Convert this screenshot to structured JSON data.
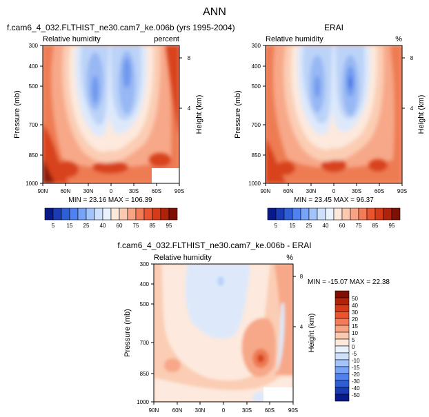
{
  "figure_title": "ANN",
  "chart_data": [
    {
      "type": "heatmap",
      "id": "model",
      "title": "f.cam6_4_032.FLTHIST_ne30.cam7_ke.006b (yrs 1995-2004)",
      "left_label": "Relative humidity",
      "right_label": "percent",
      "xlabel": "",
      "ylabel": "Pressure (mb)",
      "y2label": "Height (km)",
      "x_ticks": [
        "90N",
        "60N",
        "30N",
        "0",
        "30S",
        "60S",
        "90S"
      ],
      "x_values": [
        90,
        60,
        30,
        0,
        -30,
        -60,
        -90
      ],
      "y_ticks": [
        "300",
        "400",
        "500",
        "700",
        "850",
        "1000"
      ],
      "y_values": [
        300,
        400,
        500,
        700,
        850,
        1000
      ],
      "y2_ticks": [
        "8",
        "4"
      ],
      "stats_text": "MIN = 23.16   MAX = 106.39",
      "min": 23.16,
      "max": 106.39
    },
    {
      "type": "heatmap",
      "id": "obs",
      "title": "ERAI",
      "left_label": "Relative humidity",
      "right_label": "%",
      "xlabel": "",
      "ylabel": "Pressure (mb)",
      "y2label": "Height (km)",
      "x_ticks": [
        "90N",
        "60N",
        "30N",
        "0",
        "30S",
        "60S",
        "90S"
      ],
      "x_values": [
        90,
        60,
        30,
        0,
        -30,
        -60,
        -90
      ],
      "y_ticks": [
        "300",
        "400",
        "500",
        "700",
        "850",
        "1000"
      ],
      "y_values": [
        300,
        400,
        500,
        700,
        850,
        1000
      ],
      "y2_ticks": [
        "8",
        "4"
      ],
      "stats_text": "MIN = 23.45   MAX = 96.37",
      "min": 23.45,
      "max": 96.37
    },
    {
      "type": "heatmap",
      "id": "diff",
      "title": "f.cam6_4_032.FLTHIST_ne30.cam7_ke.006b - ERAI",
      "left_label": "Relative humidity",
      "right_label": "%",
      "xlabel": "",
      "ylabel": "Pressure (mb)",
      "y2label": "Height (km)",
      "x_ticks": [
        "90N",
        "60N",
        "30N",
        "0",
        "30S",
        "60S",
        "90S"
      ],
      "x_values": [
        90,
        60,
        30,
        0,
        -30,
        -60,
        -90
      ],
      "y_ticks": [
        "300",
        "400",
        "500",
        "700",
        "850",
        "1000"
      ],
      "y_values": [
        300,
        400,
        500,
        700,
        850,
        1000
      ],
      "y2_ticks": [
        "8",
        "4"
      ],
      "stats_text": "MIN = -15.07   MAX = 22.38",
      "min": -15.07,
      "max": 22.38
    }
  ],
  "colorbars": {
    "abs": {
      "labels": [
        "5",
        "15",
        "25",
        "40",
        "60",
        "75",
        "85",
        "95"
      ],
      "colors": [
        "#08198a",
        "#1b3bb4",
        "#2f5fd8",
        "#4f82f0",
        "#77a4f8",
        "#a3c4fb",
        "#cfe0fd",
        "#eaf2ff",
        "#fde8dc",
        "#fbc9b0",
        "#f8a383",
        "#f37b57",
        "#ea5530",
        "#d53b18",
        "#b0220a",
        "#7e1004"
      ]
    },
    "diff": {
      "labels": [
        "50",
        "40",
        "30",
        "20",
        "15",
        "10",
        "5",
        "0",
        "-5",
        "-10",
        "-15",
        "-20",
        "-30",
        "-40",
        "-50"
      ],
      "colors": [
        "#7e1004",
        "#b0220a",
        "#d53b18",
        "#ea5530",
        "#f37b57",
        "#f8a383",
        "#fbc9b0",
        "#fde8dc",
        "#eaf2ff",
        "#cfe0fd",
        "#a3c4fb",
        "#77a4f8",
        "#4f82f0",
        "#2f5fd8",
        "#1b3bb4",
        "#08198a"
      ]
    }
  },
  "colors": {
    "deep_red": "#8b1a0c",
    "red": "#d8421c",
    "orange": "#ee7b52",
    "salmon": "#f7a889",
    "peach": "#fbcdb4",
    "cream": "#fde9dd",
    "pale_blue": "#dde9fb",
    "light_blue": "#bcd3f8",
    "blue": "#97b8f4",
    "mid_blue": "#6f98ee",
    "dark_blue": "#3f72e4"
  }
}
